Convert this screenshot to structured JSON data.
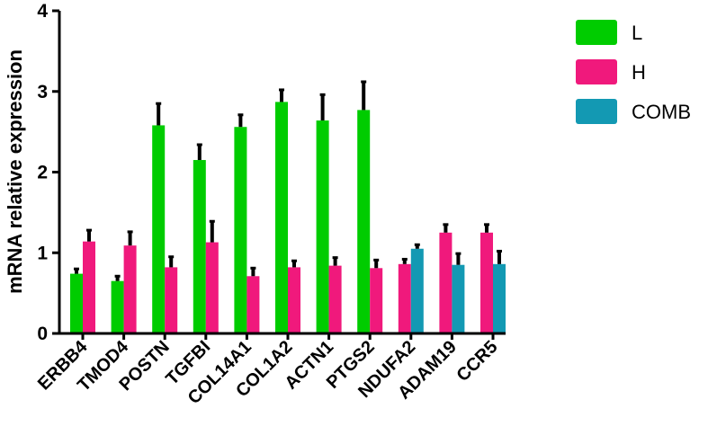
{
  "chart_data": {
    "type": "bar",
    "title": "",
    "xlabel": "",
    "ylabel": "mRNA relative expression",
    "ylim": [
      0,
      4
    ],
    "yticks": [
      "0",
      "1",
      "2",
      "3",
      "4"
    ],
    "grid": false,
    "legend_position": "top-right",
    "categories": [
      "ERBB4",
      "TMOD4",
      "POSTN",
      "TGFBI",
      "COL14A1",
      "COL1A2",
      "ACTN1",
      "PTGS2",
      "NDUFA2",
      "ADAM19",
      "CCR5"
    ],
    "series": [
      {
        "name": "L",
        "color": "#00cc00",
        "values": [
          0.74,
          0.65,
          2.58,
          2.15,
          2.56,
          2.87,
          2.64,
          2.77,
          null,
          null,
          null
        ],
        "errors": [
          0.06,
          0.06,
          0.27,
          0.19,
          0.15,
          0.15,
          0.32,
          0.35,
          null,
          null,
          null
        ]
      },
      {
        "name": "H",
        "color": "#f0197c",
        "values": [
          1.14,
          1.09,
          0.82,
          1.13,
          0.71,
          0.82,
          0.84,
          0.81,
          0.86,
          1.25,
          1.25
        ],
        "errors": [
          0.14,
          0.17,
          0.13,
          0.26,
          0.1,
          0.08,
          0.1,
          0.1,
          0.06,
          0.1,
          0.1
        ]
      },
      {
        "name": "COMB",
        "color": "#1399b3",
        "values": [
          null,
          null,
          null,
          null,
          null,
          null,
          null,
          null,
          1.05,
          0.85,
          0.86
        ],
        "errors": [
          null,
          null,
          null,
          null,
          null,
          null,
          null,
          null,
          0.05,
          0.14,
          0.16
        ]
      }
    ]
  }
}
